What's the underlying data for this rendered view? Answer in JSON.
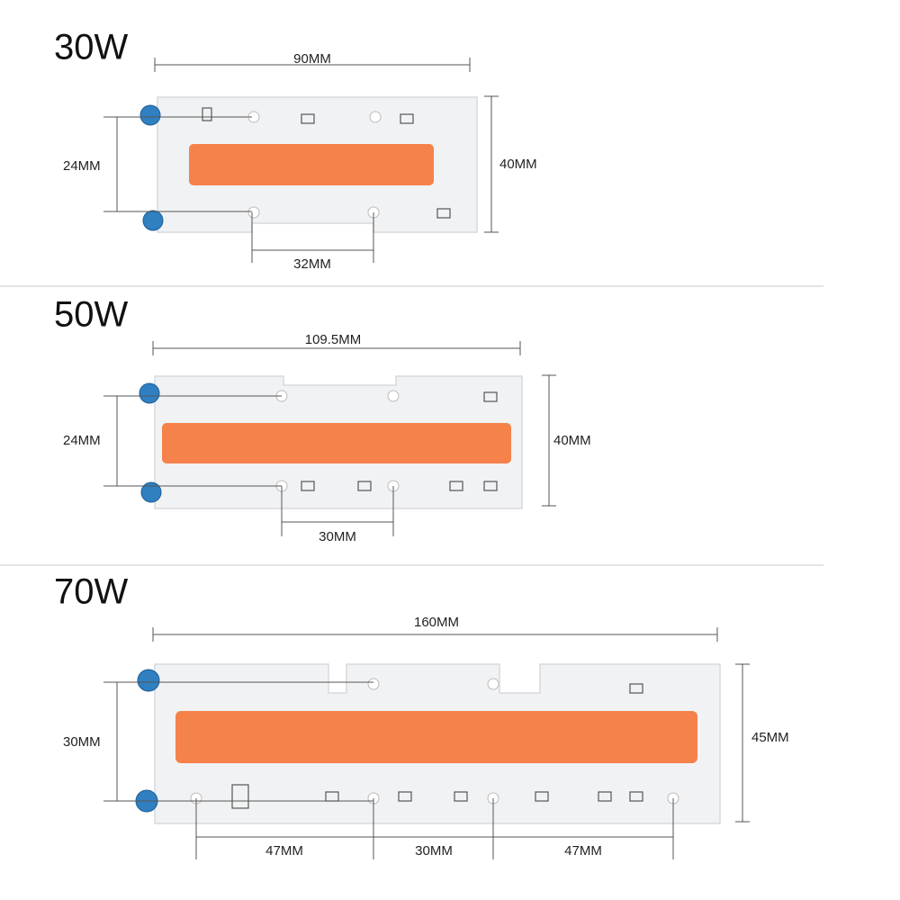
{
  "sections": [
    {
      "title": "30W",
      "width": "90MM",
      "height": "40MM",
      "pitch": "24MM",
      "spacing": [
        "32MM"
      ]
    },
    {
      "title": "50W",
      "width": "109.5MM",
      "height": "40MM",
      "pitch": "24MM",
      "spacing": [
        "30MM"
      ]
    },
    {
      "title": "70W",
      "width": "160MM",
      "height": "45MM",
      "pitch": "30MM",
      "spacing": [
        "47MM",
        "30MM",
        "47MM"
      ]
    }
  ]
}
